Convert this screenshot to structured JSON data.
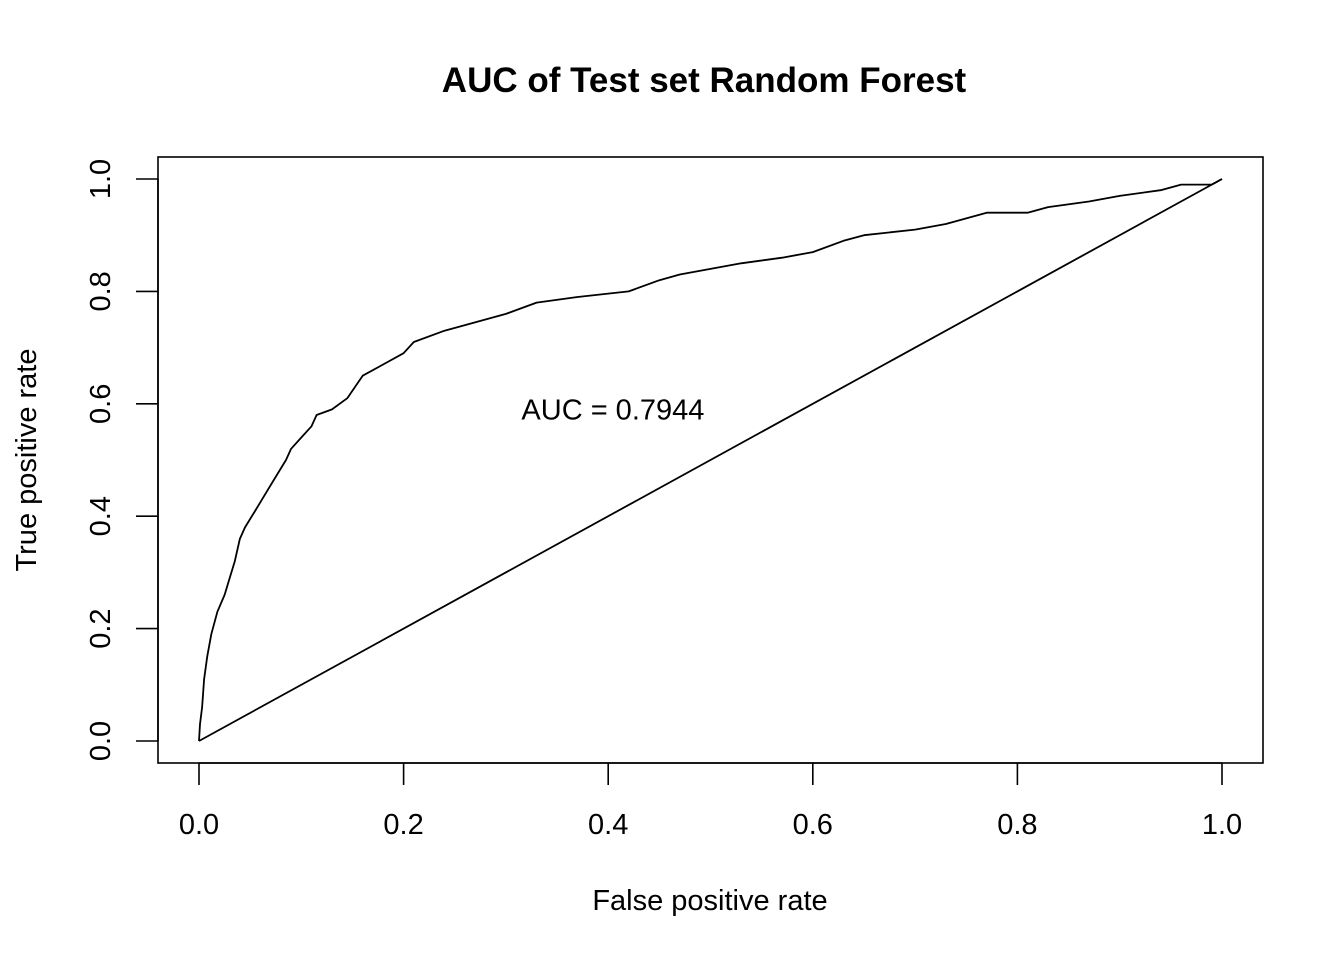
{
  "chart_data": {
    "type": "line",
    "title": "AUC of Test set Random Forest",
    "xlabel": "False positive rate",
    "ylabel": "True positive rate",
    "xlim": [
      0,
      1
    ],
    "ylim": [
      0,
      1
    ],
    "x_ticks": [
      "0.0",
      "0.2",
      "0.4",
      "0.6",
      "0.8",
      "1.0"
    ],
    "y_ticks": [
      "0.0",
      "0.2",
      "0.4",
      "0.6",
      "0.8",
      "1.0"
    ],
    "grid": false,
    "annotation": {
      "text": "AUC = 0.7944",
      "x": 0.3,
      "y": 0.59
    },
    "series": [
      {
        "values": [
          [
            0,
            0
          ],
          [
            0.001,
            0.03
          ],
          [
            0.003,
            0.06
          ],
          [
            0.005,
            0.11
          ],
          [
            0.008,
            0.15
          ],
          [
            0.012,
            0.19
          ],
          [
            0.018,
            0.23
          ],
          [
            0.025,
            0.26
          ],
          [
            0.03,
            0.29
          ],
          [
            0.035,
            0.32
          ],
          [
            0.04,
            0.36
          ],
          [
            0.045,
            0.38
          ],
          [
            0.055,
            0.41
          ],
          [
            0.065,
            0.44
          ],
          [
            0.075,
            0.47
          ],
          [
            0.085,
            0.5
          ],
          [
            0.09,
            0.52
          ],
          [
            0.1,
            0.54
          ],
          [
            0.11,
            0.56
          ],
          [
            0.115,
            0.58
          ],
          [
            0.13,
            0.59
          ],
          [
            0.145,
            0.61
          ],
          [
            0.16,
            0.65
          ],
          [
            0.18,
            0.67
          ],
          [
            0.2,
            0.69
          ],
          [
            0.21,
            0.71
          ],
          [
            0.24,
            0.73
          ],
          [
            0.26,
            0.74
          ],
          [
            0.3,
            0.76
          ],
          [
            0.33,
            0.78
          ],
          [
            0.37,
            0.79
          ],
          [
            0.42,
            0.8
          ],
          [
            0.45,
            0.82
          ],
          [
            0.47,
            0.83
          ],
          [
            0.5,
            0.84
          ],
          [
            0.53,
            0.85
          ],
          [
            0.57,
            0.86
          ],
          [
            0.6,
            0.87
          ],
          [
            0.63,
            0.89
          ],
          [
            0.65,
            0.9
          ],
          [
            0.7,
            0.91
          ],
          [
            0.73,
            0.92
          ],
          [
            0.77,
            0.94
          ],
          [
            0.81,
            0.94
          ],
          [
            0.83,
            0.95
          ],
          [
            0.87,
            0.96
          ],
          [
            0.9,
            0.97
          ],
          [
            0.94,
            0.98
          ],
          [
            0.96,
            0.99
          ],
          [
            0.99,
            0.99
          ],
          [
            1.0,
            1.0
          ]
        ]
      },
      {
        "values": [
          [
            0,
            0
          ],
          [
            1,
            1
          ]
        ]
      }
    ]
  }
}
